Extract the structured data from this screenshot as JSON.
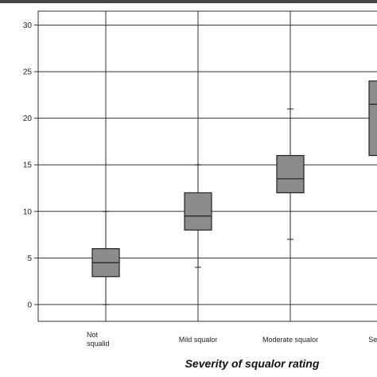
{
  "chart_data": {
    "type": "boxplot",
    "xlabel": "Severity of squalor rating",
    "ylabel": "",
    "ylim": [
      -1.8,
      31.5
    ],
    "yticks": [
      0,
      5,
      10,
      15,
      20,
      25,
      30
    ],
    "grid": true,
    "categories": [
      [
        "Not",
        "squalid"
      ],
      [
        "Mild squalor"
      ],
      [
        "Moderate squalor"
      ],
      [
        "Severe s"
      ]
    ],
    "boxes": [
      {
        "min": 0,
        "q1": 3,
        "median": 4.5,
        "q3": 6,
        "max": 10
      },
      {
        "min": 4,
        "q1": 8,
        "median": 9.5,
        "q3": 12,
        "max": 15
      },
      {
        "min": 7,
        "q1": 12,
        "median": 13.5,
        "q3": 16,
        "max": 21
      },
      {
        "min": 16,
        "q1": 16,
        "median": 21.5,
        "q3": 24,
        "max": 24
      }
    ],
    "box_color": "#8c8c8c"
  }
}
